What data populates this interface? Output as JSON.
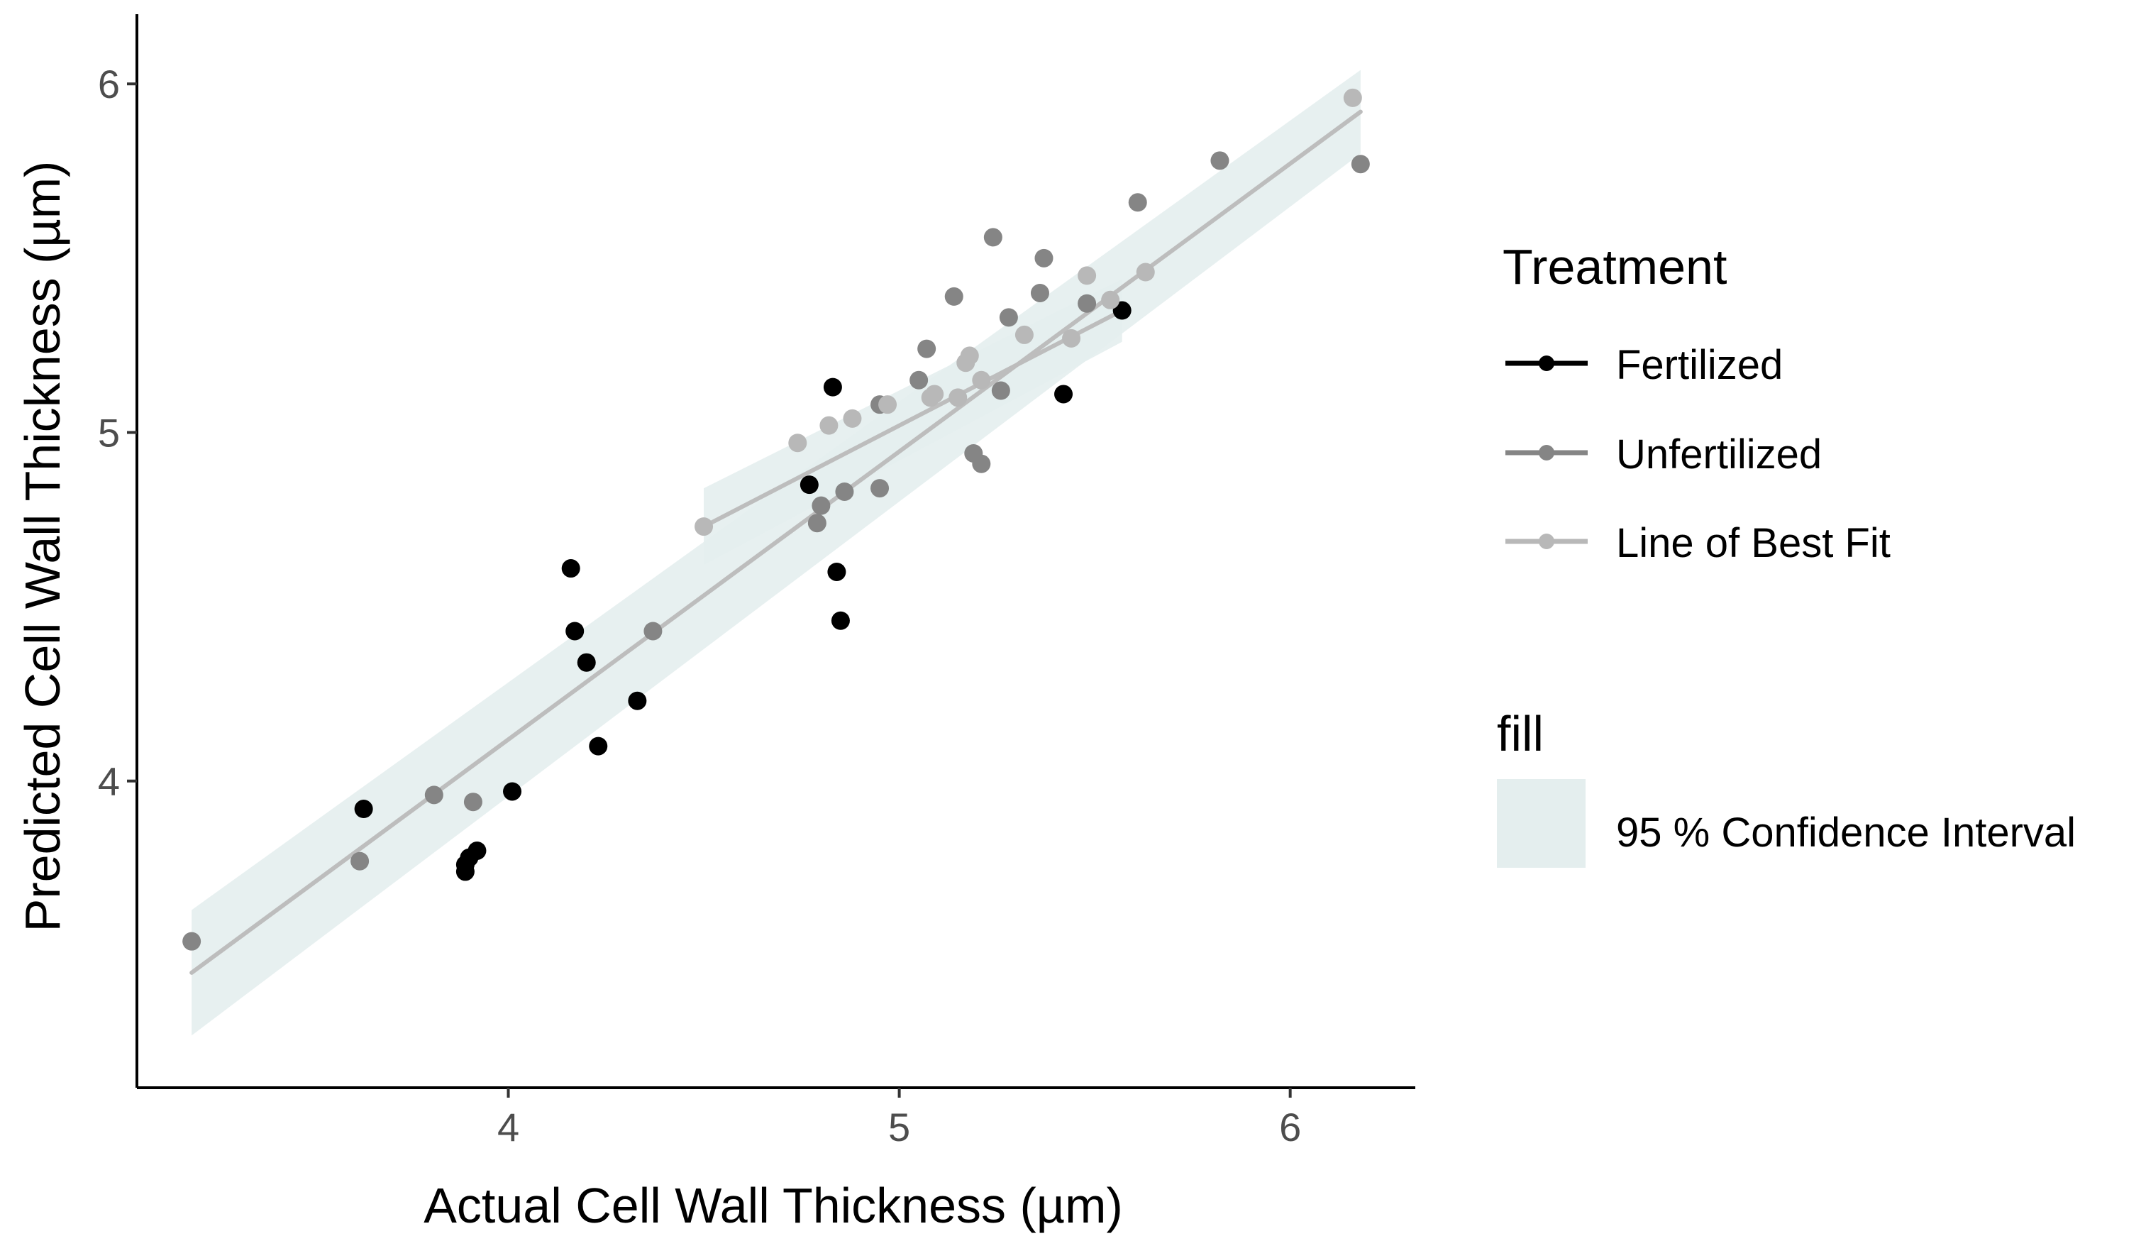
{
  "chart_data": {
    "type": "scatter",
    "title": "",
    "xlabel": "Actual Cell Wall Thickness (µm)",
    "ylabel": "Predicted Cell Wall Thickness (µm)",
    "xlim": [
      3.05,
      6.32
    ],
    "ylim": [
      3.12,
      6.2
    ],
    "xticks": [
      4,
      5,
      6
    ],
    "yticks": [
      4,
      5,
      6
    ],
    "xtick_labels": [
      "4",
      "5",
      "6"
    ],
    "ytick_labels": [
      "4",
      "5",
      "6"
    ],
    "grid": false,
    "series": [
      {
        "name": "Fertilized",
        "color": "#000000",
        "points": [
          [
            3.63,
            3.92
          ],
          [
            3.89,
            3.74
          ],
          [
            3.89,
            3.76
          ],
          [
            3.9,
            3.78
          ],
          [
            3.92,
            3.8
          ],
          [
            4.01,
            3.97
          ],
          [
            4.16,
            4.61
          ],
          [
            4.17,
            4.43
          ],
          [
            4.2,
            4.34
          ],
          [
            4.23,
            4.1
          ],
          [
            4.33,
            4.23
          ],
          [
            4.77,
            4.85
          ],
          [
            4.83,
            5.13
          ],
          [
            4.84,
            4.6
          ],
          [
            4.85,
            4.46
          ],
          [
            5.42,
            5.11
          ],
          [
            5.57,
            5.35
          ]
        ]
      },
      {
        "name": "Unfertilized",
        "color": "#858585",
        "points": [
          [
            3.19,
            3.54
          ],
          [
            3.62,
            3.77
          ],
          [
            3.81,
            3.96
          ],
          [
            3.91,
            3.94
          ],
          [
            4.37,
            4.43
          ],
          [
            4.79,
            4.74
          ],
          [
            4.8,
            4.79
          ],
          [
            4.86,
            4.83
          ],
          [
            4.95,
            4.84
          ],
          [
            4.95,
            5.08
          ],
          [
            5.05,
            5.15
          ],
          [
            5.07,
            5.24
          ],
          [
            5.14,
            5.39
          ],
          [
            5.19,
            4.94
          ],
          [
            5.21,
            4.91
          ],
          [
            5.24,
            5.56
          ],
          [
            5.26,
            5.12
          ],
          [
            5.28,
            5.33
          ],
          [
            5.36,
            5.4
          ],
          [
            5.37,
            5.5
          ],
          [
            5.48,
            5.37
          ],
          [
            5.61,
            5.66
          ],
          [
            5.82,
            5.78
          ],
          [
            6.18,
            5.77
          ]
        ]
      },
      {
        "name": "Line of Best Fit",
        "color": "#b8b8b8",
        "points": [
          [
            4.5,
            4.73
          ],
          [
            4.74,
            4.97
          ],
          [
            4.82,
            5.02
          ],
          [
            4.88,
            5.04
          ],
          [
            4.97,
            5.08
          ],
          [
            5.08,
            5.1
          ],
          [
            5.09,
            5.11
          ],
          [
            5.15,
            5.1
          ],
          [
            5.17,
            5.2
          ],
          [
            5.18,
            5.22
          ],
          [
            5.21,
            5.15
          ],
          [
            5.32,
            5.28
          ],
          [
            5.44,
            5.27
          ],
          [
            5.48,
            5.45
          ],
          [
            5.54,
            5.38
          ],
          [
            5.63,
            5.46
          ],
          [
            6.16,
            5.96
          ]
        ]
      }
    ],
    "fit_lines": [
      {
        "name": "overall fit",
        "x": [
          3.19,
          6.18
        ],
        "y": [
          3.45,
          5.92
        ],
        "ci_lower": [
          3.27,
          5.8
        ],
        "ci_upper": [
          3.63,
          6.04
        ]
      },
      {
        "name": "subset fit",
        "x": [
          4.5,
          5.57
        ],
        "y": [
          4.73,
          5.35
        ],
        "ci_lower": [
          4.62,
          5.26
        ],
        "ci_upper": [
          4.84,
          5.44
        ]
      }
    ],
    "legend": {
      "title": "Treatment",
      "entries": [
        "Fertilized",
        "Unfertilized",
        "Line of Best Fit"
      ],
      "fill_title": "fill",
      "fill_entry": "95 % Confidence Interval",
      "position": "right"
    },
    "colors": {
      "fertilized": "#000000",
      "unfertilized": "#858585",
      "best_fit": "#b8b8b8",
      "fit_line": "#bdbdbd",
      "ci_band": "#e4eeee"
    }
  }
}
